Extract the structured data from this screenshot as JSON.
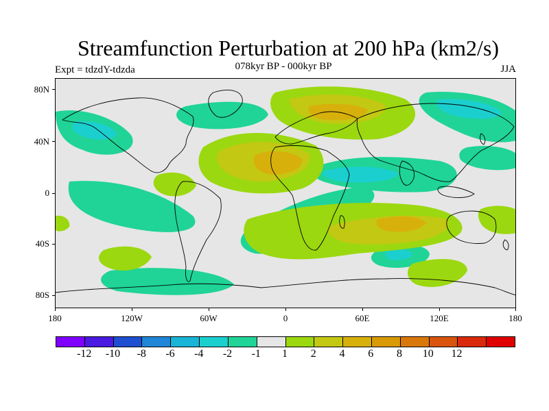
{
  "title": "Streamfunction Perturbation at 200 hPa (km2/s)",
  "subtitle": "078kyr BP - 000kyr BP",
  "left_label": "Expt = tdzdY-tdzda",
  "right_label": "JJA",
  "map": {
    "projection": "cylindrical equidistant",
    "lon_range": [
      -180,
      180
    ],
    "lat_range": [
      -90,
      90
    ],
    "x_ticks": [
      "180",
      "120W",
      "60W",
      "0",
      "60E",
      "120E",
      "180"
    ],
    "y_ticks": [
      "80N",
      "40N",
      "0",
      "40S",
      "80S"
    ],
    "background_color": "#e6e6e6",
    "coastline_color": "#000000"
  },
  "colorbar": {
    "colors": [
      "#7f00ff",
      "#4a1ae0",
      "#1f4fd0",
      "#1f86d8",
      "#19b4d6",
      "#1ccfcf",
      "#1fd496",
      "#e6e6e6",
      "#9bd80f",
      "#c3c812",
      "#d8b00c",
      "#d99a06",
      "#d9780a",
      "#d9540c",
      "#d92a0c",
      "#e00000"
    ],
    "labels": [
      "-12",
      "-10",
      "-8",
      "-6",
      "-4",
      "-2",
      "-1",
      "1",
      "2",
      "4",
      "6",
      "8",
      "10",
      "12"
    ]
  }
}
